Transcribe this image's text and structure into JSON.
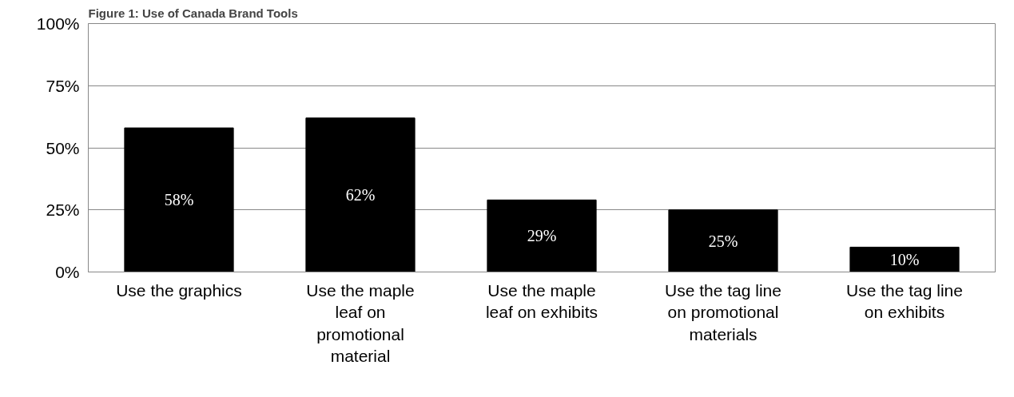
{
  "chart_data": {
    "type": "bar",
    "title": "Figure 1: Use of Canada Brand Tools",
    "categories": [
      "Use the graphics",
      "Use the maple leaf on promotional material",
      "Use the maple leaf on exhibits",
      "Use the tag line on promotional materials",
      "Use the tag line on exhibits"
    ],
    "values": [
      58,
      62,
      29,
      25,
      10
    ],
    "value_labels": [
      "58%",
      "62%",
      "29%",
      "25%",
      "10%"
    ],
    "color": "#000000",
    "ylim": [
      0,
      100
    ],
    "yticks": [
      {
        "value": 0,
        "label": "0%"
      },
      {
        "value": 25,
        "label": "25%"
      },
      {
        "value": 50,
        "label": "50%"
      },
      {
        "value": 75,
        "label": "75%"
      },
      {
        "value": 100,
        "label": "100%"
      }
    ],
    "grid": "y"
  }
}
